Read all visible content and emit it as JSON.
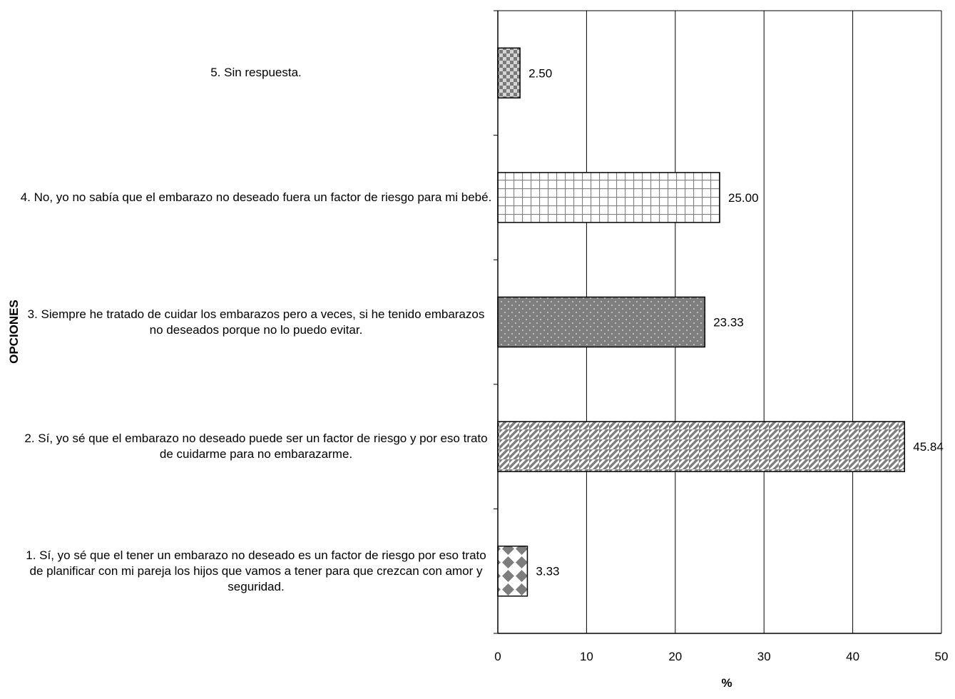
{
  "chart_data": {
    "type": "bar",
    "orientation": "horizontal",
    "categories": [
      "1. Sí, yo sé que el tener un embarazo no deseado es un factor de riesgo por eso trato de planificar con mi pareja los hijos que vamos a tener para que crezcan con amor y seguridad.",
      "2. Sí, yo sé que el embarazo no deseado puede ser un factor de riesgo y por eso trato de cuidarme para  no embarazarme.",
      "3. Siempre he tratado de cuidar los embarazos pero a veces, si he tenido embarazos no deseados porque no lo puedo evitar.",
      "4. No, yo no sabía que el embarazo no deseado fuera un factor de riesgo para mi bebé.",
      "5. Sin respuesta."
    ],
    "values": [
      3.33,
      45.84,
      23.33,
      25.0,
      2.5
    ],
    "value_labels": [
      "3.33",
      "45.84",
      "23.33",
      "25.00",
      "2.50"
    ],
    "patterns": [
      "diamonds",
      "diagonal",
      "dots",
      "grid",
      "checker"
    ],
    "xlabel": "%",
    "ylabel": "OPCIONES",
    "xlim": [
      0,
      50
    ],
    "xticks": [
      "0",
      "10",
      "20",
      "30",
      "40",
      "50"
    ],
    "grid": "vertical",
    "legend": "none"
  }
}
